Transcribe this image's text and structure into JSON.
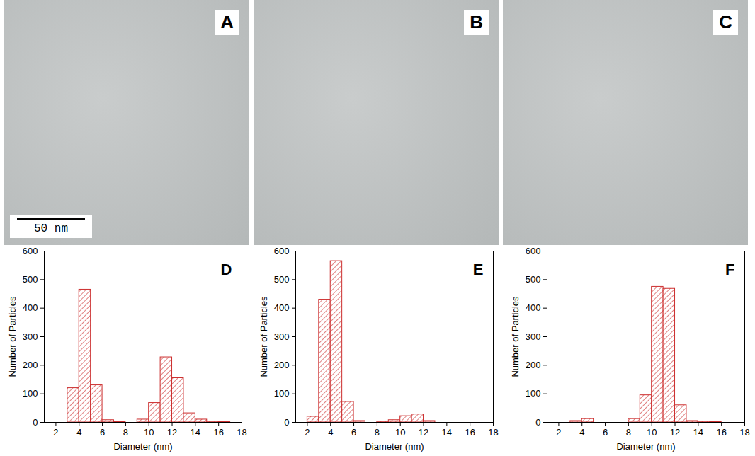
{
  "images": [
    {
      "panel": "A",
      "scale_bar": "50 nm"
    },
    {
      "panel": "B"
    },
    {
      "panel": "C"
    }
  ],
  "chart_data": [
    {
      "type": "histogram",
      "title": "D",
      "x_label": "Diameter (nm)",
      "y_label": "Number of Particles",
      "color": "#cc2e2e",
      "bins": [
        3,
        4,
        5,
        6,
        7,
        8,
        9,
        10,
        11,
        12,
        13,
        14,
        15,
        16,
        17
      ],
      "values": [
        120,
        465,
        130,
        8,
        2,
        0,
        10,
        68,
        228,
        155,
        32,
        10,
        3,
        2
      ],
      "xlim": [
        1,
        18
      ],
      "xticks": [
        2,
        4,
        6,
        8,
        10,
        12,
        14,
        16,
        18
      ],
      "ylim": [
        0,
        600
      ],
      "yticks": [
        0,
        100,
        200,
        300,
        400,
        500,
        600
      ]
    },
    {
      "type": "histogram",
      "title": "E",
      "x_label": "Diameter (nm)",
      "y_label": "Number of Particles",
      "color": "#cc2e2e",
      "bins": [
        2,
        3,
        4,
        5,
        6,
        7,
        8,
        9,
        10,
        11,
        12,
        13
      ],
      "values": [
        20,
        430,
        565,
        72,
        5,
        0,
        3,
        8,
        22,
        28,
        5
      ],
      "xlim": [
        1,
        18
      ],
      "xticks": [
        2,
        4,
        6,
        8,
        10,
        12,
        14,
        16,
        18
      ],
      "ylim": [
        0,
        600
      ],
      "yticks": [
        0,
        100,
        200,
        300,
        400,
        500,
        600
      ]
    },
    {
      "type": "histogram",
      "title": "F",
      "x_label": "Diameter (nm)",
      "y_label": "Number of Particles",
      "color": "#cc2e2e",
      "bins": [
        3,
        4,
        5,
        6,
        7,
        8,
        9,
        10,
        11,
        12,
        13,
        14,
        15,
        16
      ],
      "values": [
        5,
        12,
        0,
        0,
        0,
        12,
        95,
        475,
        468,
        60,
        5,
        3,
        2
      ],
      "xlim": [
        1,
        18
      ],
      "xticks": [
        2,
        4,
        6,
        8,
        10,
        12,
        14,
        16,
        18
      ],
      "ylim": [
        0,
        600
      ],
      "yticks": [
        0,
        100,
        200,
        300,
        400,
        500,
        600
      ]
    }
  ]
}
